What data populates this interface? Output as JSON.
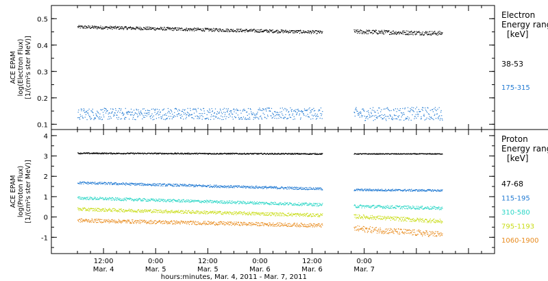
{
  "chart_data": [
    {
      "type": "scatter",
      "panel": "electron",
      "ylabel_lines": [
        "ACE EPAM",
        "log(Electron Flux)",
        "[1/(cm²s ster MeV)]"
      ],
      "ylim": [
        0.08,
        0.55
      ],
      "yticks": [
        0.1,
        0.2,
        0.3,
        0.4,
        0.5
      ],
      "yticklabels": [
        "0.1",
        "0.2",
        "0.3",
        "0.4",
        "0.5"
      ],
      "legend_title": [
        "Electron",
        "Energy ranges",
        "[keV]"
      ],
      "series": [
        {
          "name": "38-53",
          "color": "#000000",
          "segments": [
            {
              "x0": 0.0,
              "x1": 2.35,
              "y0": 0.47,
              "y1": 0.45,
              "noise": 0.006
            },
            {
              "x0": 2.65,
              "x1": 3.5,
              "y0": 0.452,
              "y1": 0.446,
              "noise": 0.008
            }
          ]
        },
        {
          "name": "175-315",
          "color": "#1e78d2",
          "segments": [
            {
              "x0": 0.0,
              "x1": 2.35,
              "y0": 0.14,
              "y1": 0.142,
              "noise": 0.022
            },
            {
              "x0": 2.65,
              "x1": 3.5,
              "y0": 0.14,
              "y1": 0.142,
              "noise": 0.025
            }
          ]
        }
      ]
    },
    {
      "type": "scatter",
      "panel": "proton",
      "ylabel_lines": [
        "ACE EPAM",
        "log(Proton Flux)",
        "[1/(cm²s ster MeV)]"
      ],
      "ylim": [
        -1.8,
        4.3
      ],
      "yticks": [
        -1,
        0,
        1,
        2,
        3,
        4
      ],
      "yticklabels": [
        "-1",
        "0",
        "1",
        "2",
        "3",
        "4"
      ],
      "legend_title": [
        "Proton",
        "Energy ranges",
        "[keV]"
      ],
      "series": [
        {
          "name": "47-68",
          "color": "#000000",
          "segments": [
            {
              "x0": 0.0,
              "x1": 2.35,
              "y0": 3.15,
              "y1": 3.12,
              "noise": 0.03
            },
            {
              "x0": 2.65,
              "x1": 3.5,
              "y0": 3.12,
              "y1": 3.12,
              "noise": 0.02
            }
          ]
        },
        {
          "name": "115-195",
          "color": "#1e78d2",
          "segments": [
            {
              "x0": 0.0,
              "x1": 2.35,
              "y0": 1.7,
              "y1": 1.4,
              "noise": 0.06
            },
            {
              "x0": 2.65,
              "x1": 3.5,
              "y0": 1.35,
              "y1": 1.32,
              "noise": 0.05
            }
          ]
        },
        {
          "name": "310-580",
          "color": "#2ad6c6",
          "segments": [
            {
              "x0": 0.0,
              "x1": 2.35,
              "y0": 0.95,
              "y1": 0.62,
              "noise": 0.07
            },
            {
              "x0": 2.65,
              "x1": 3.5,
              "y0": 0.55,
              "y1": 0.45,
              "noise": 0.08
            }
          ]
        },
        {
          "name": "795-1193",
          "color": "#c8dc14",
          "segments": [
            {
              "x0": 0.0,
              "x1": 2.35,
              "y0": 0.4,
              "y1": 0.1,
              "noise": 0.08
            },
            {
              "x0": 2.65,
              "x1": 3.5,
              "y0": 0.05,
              "y1": -0.2,
              "noise": 0.1
            }
          ]
        },
        {
          "name": "1060-1900",
          "color": "#e88a1c",
          "segments": [
            {
              "x0": 0.0,
              "x1": 2.35,
              "y0": -0.15,
              "y1": -0.4,
              "noise": 0.09
            },
            {
              "x0": 2.65,
              "x1": 3.5,
              "y0": -0.55,
              "y1": -0.85,
              "noise": 0.15
            }
          ]
        }
      ]
    }
  ],
  "x_axis": {
    "xlim": [
      -0.25,
      4.0
    ],
    "xlabel": "hours:minutes, Mar.  4, 2011 - Mar.  7, 2011",
    "ticks": [
      {
        "x": 0.25,
        "time": "12:00",
        "date": "Mar. 4"
      },
      {
        "x": 0.75,
        "time": "0:00",
        "date": "Mar. 5"
      },
      {
        "x": 1.25,
        "time": "12:00",
        "date": "Mar. 5"
      },
      {
        "x": 1.75,
        "time": "0:00",
        "date": "Mar. 6"
      },
      {
        "x": 2.25,
        "time": "12:00",
        "date": "Mar. 6"
      },
      {
        "x": 2.75,
        "time": "0:00",
        "date": "Mar. 7"
      }
    ]
  }
}
